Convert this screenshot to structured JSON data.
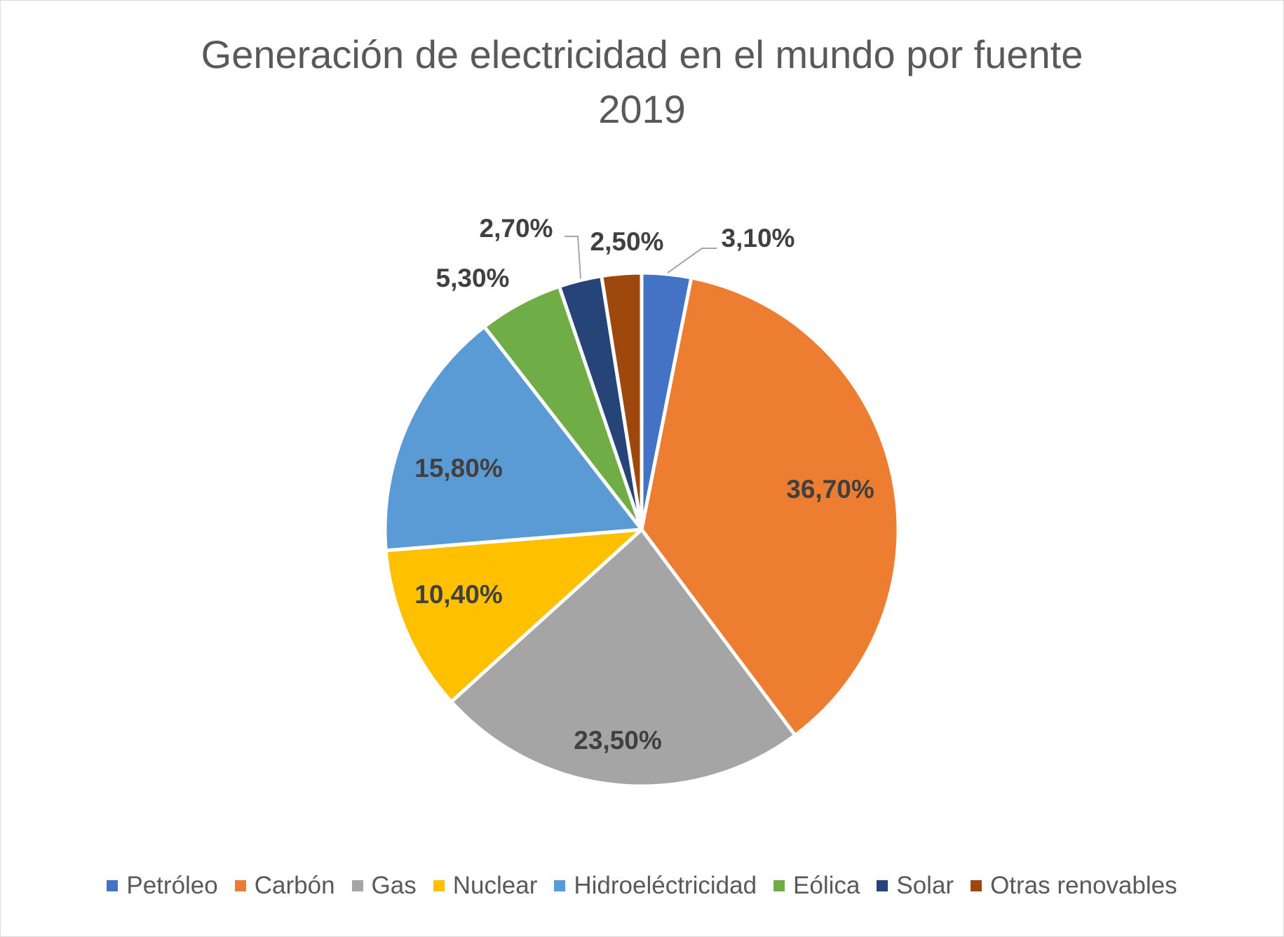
{
  "chart_data": {
    "type": "pie",
    "title": "Generación de electricidad en el mundo por fuente",
    "subtitle": "2019",
    "categories": [
      "Petróleo",
      "Carbón",
      "Gas",
      "Nuclear",
      "Hidroeléctricidad",
      "Eólica",
      "Solar",
      "Otras renovables"
    ],
    "values": [
      3.1,
      36.7,
      23.5,
      10.4,
      15.8,
      5.3,
      2.7,
      2.5
    ],
    "labels": [
      "3,10%",
      "36,70%",
      "23,50%",
      "10,40%",
      "15,80%",
      "5,30%",
      "2,70%",
      "2,50%"
    ],
    "colors": [
      "#4472C4",
      "#ED7D31",
      "#A5A5A5",
      "#FFC000",
      "#5B9BD5",
      "#70AD47",
      "#264478",
      "#9E480E"
    ],
    "legend_position": "bottom"
  }
}
